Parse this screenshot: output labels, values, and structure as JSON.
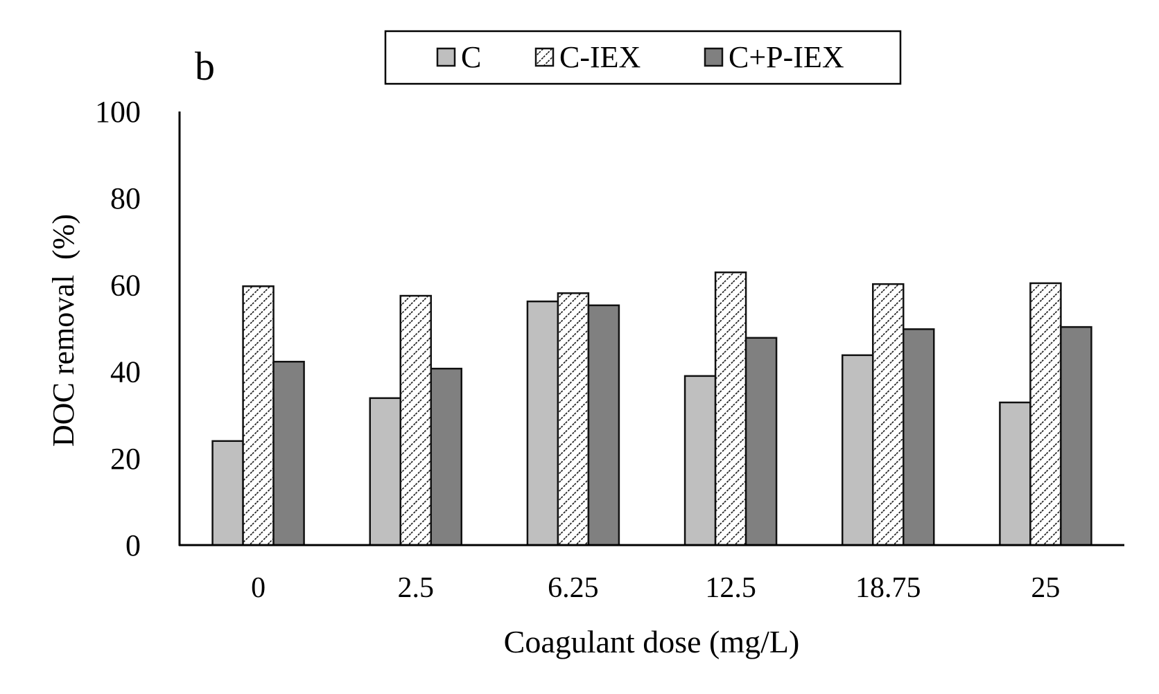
{
  "chart_data": {
    "type": "bar",
    "panel_label": "b",
    "title": "",
    "xlabel": "Coagulant dose (mg/L)",
    "ylabel": "DOC removal  (%)",
    "categories": [
      "0",
      "2.5",
      "6.25",
      "12.5",
      "18.75",
      "25"
    ],
    "ylim": [
      0,
      100
    ],
    "yticks": [
      "0",
      "20",
      "40",
      "60",
      "80",
      "100"
    ],
    "grid": false,
    "legend_position": "top-center",
    "series": [
      {
        "name": "C",
        "color": "#bfbfbf",
        "pattern": "solid",
        "values": [
          24.0,
          33.9,
          56.2,
          39.0,
          43.8,
          32.9
        ]
      },
      {
        "name": "C-IEX",
        "color": "#ffffff",
        "pattern": "diagonal-hatch",
        "values": [
          59.7,
          57.5,
          58.1,
          62.9,
          60.2,
          60.4
        ]
      },
      {
        "name": "C+P-IEX",
        "color": "#808080",
        "pattern": "solid",
        "values": [
          42.3,
          40.7,
          55.3,
          47.8,
          49.8,
          50.3
        ]
      }
    ]
  }
}
